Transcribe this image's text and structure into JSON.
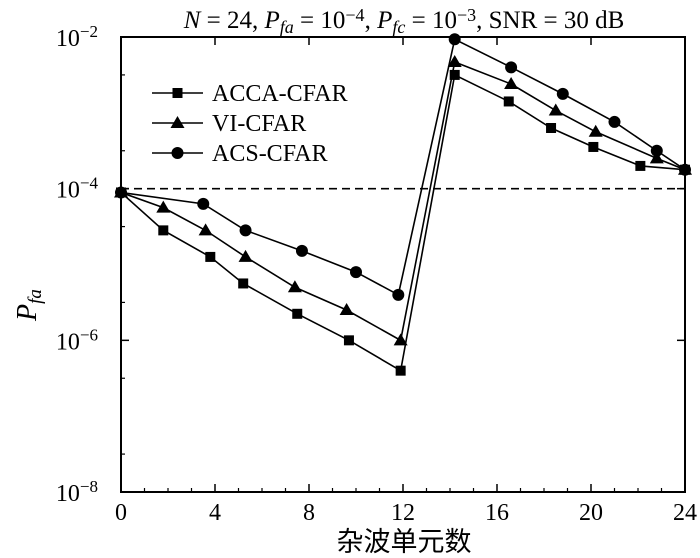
{
  "chart_data": {
    "type": "line",
    "title": {
      "parts": [
        {
          "text": "N",
          "italic": true
        },
        {
          "text": " = 24, "
        },
        {
          "text": "P",
          "italic": true
        },
        {
          "text": "fa",
          "italic": true,
          "sub": true
        },
        {
          "text": " = 10"
        },
        {
          "text": "−4",
          "sup": true
        },
        {
          "text": ", "
        },
        {
          "text": "P",
          "italic": true
        },
        {
          "text": "fc",
          "italic": true,
          "sub": true
        },
        {
          "text": " = 10"
        },
        {
          "text": "−3",
          "sup": true
        },
        {
          "text": ", SNR = 30 dB"
        }
      ]
    },
    "xlabel": "杂波单元数",
    "ylabel": {
      "main": "P",
      "sub": "fa"
    },
    "xlim": [
      0,
      24
    ],
    "ylim_log10": [
      -8,
      -2
    ],
    "yscale": "log",
    "xticks": [
      0,
      4,
      8,
      12,
      16,
      20,
      24
    ],
    "yticks": [
      {
        "base": "10",
        "exp": "−2",
        "value": -2
      },
      {
        "base": "10",
        "exp": "−4",
        "value": -4
      },
      {
        "base": "10",
        "exp": "−6",
        "value": -6
      },
      {
        "base": "10",
        "exp": "−8",
        "value": -8
      }
    ],
    "reference_line": {
      "y_log10": -4,
      "style": "dashed"
    },
    "legend_position": "top-left",
    "series": [
      {
        "name": "ACCA-CFAR",
        "marker": "square",
        "x": [
          0,
          1.8,
          3.8,
          5.2,
          7.5,
          9.7,
          11.9,
          14.2,
          16.5,
          18.3,
          20.1,
          22.1,
          24
        ],
        "y_log10": [
          -4.05,
          -4.55,
          -4.9,
          -5.25,
          -5.65,
          -6.0,
          -6.4,
          -2.5,
          -2.85,
          -3.2,
          -3.45,
          -3.7,
          -3.75
        ]
      },
      {
        "name": "VI-CFAR",
        "marker": "triangle",
        "x": [
          0,
          1.8,
          3.6,
          5.3,
          7.4,
          9.6,
          11.9,
          14.2,
          16.6,
          18.5,
          20.2,
          22.8,
          24
        ],
        "y_log10": [
          -4.05,
          -4.25,
          -4.55,
          -4.9,
          -5.3,
          -5.6,
          -6.0,
          -2.33,
          -2.62,
          -2.97,
          -3.25,
          -3.6,
          -3.75
        ]
      },
      {
        "name": "ACS-CFAR",
        "marker": "circle",
        "x": [
          0,
          3.5,
          5.3,
          7.7,
          10.0,
          11.8,
          14.2,
          16.6,
          18.8,
          21.0,
          22.8,
          24
        ],
        "y_log10": [
          -4.05,
          -4.2,
          -4.55,
          -4.82,
          -5.1,
          -5.4,
          -2.03,
          -2.4,
          -2.75,
          -3.12,
          -3.5,
          -3.75
        ]
      }
    ]
  }
}
